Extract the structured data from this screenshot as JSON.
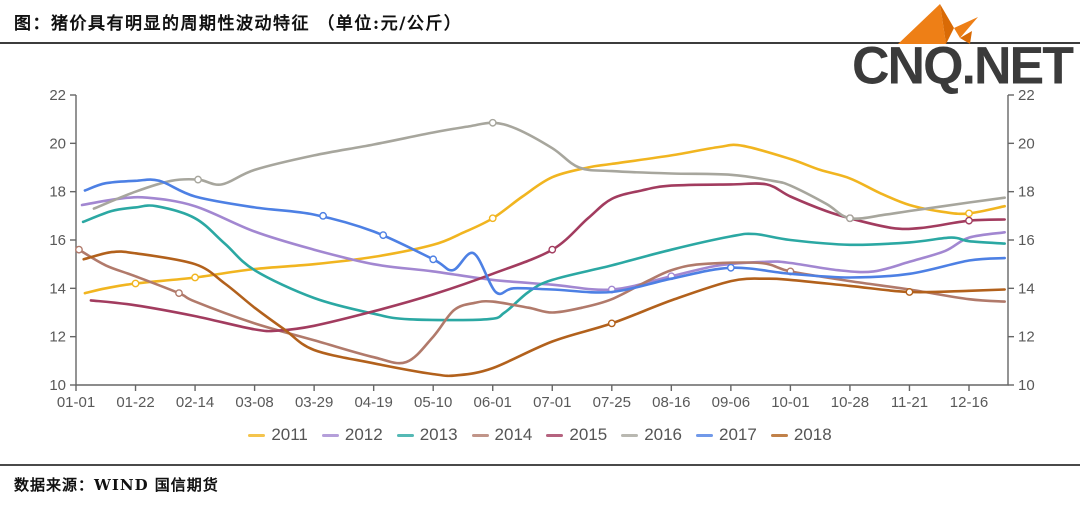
{
  "header": {
    "title": "图：猪价具有明显的周期性波动特征 （单位:元/公斤）"
  },
  "logo": {
    "text": "CNQ.NET",
    "icon": "origami-bird-icon",
    "icon_color": "#ee7f16",
    "icon_color_dark": "#d96a05",
    "text_color": "#3b3b3b"
  },
  "footer": {
    "source": "数据来源：WIND 国信期货"
  },
  "chart_data": {
    "type": "line",
    "title": "猪价周期性波动",
    "unit": "元/公斤",
    "x_tick_labels": [
      "01-01",
      "01-22",
      "02-14",
      "03-08",
      "03-29",
      "04-19",
      "05-10",
      "06-01",
      "07-01",
      "07-25",
      "08-16",
      "09-06",
      "10-01",
      "10-28",
      "11-21",
      "12-16"
    ],
    "y_axis": {
      "min": 10,
      "max": 22,
      "step": 2,
      "sides": "both"
    },
    "legend_position": "bottom",
    "grid": false,
    "styles": {
      "axis_color": "#666666",
      "tick_label_color": "#595959",
      "tick_font_size": 15,
      "line_width": 2.6
    },
    "series": [
      {
        "name": "2011",
        "color": "#f1b520",
        "points": [
          [
            0.15,
            13.8
          ],
          [
            0.5,
            14.0
          ],
          [
            1,
            14.2
          ],
          [
            2,
            14.45
          ],
          [
            3,
            14.8
          ],
          [
            4,
            15.0
          ],
          [
            5,
            15.3
          ],
          [
            6,
            15.8
          ],
          [
            6.5,
            16.3
          ],
          [
            7,
            16.9
          ],
          [
            7.5,
            17.8
          ],
          [
            8,
            18.6
          ],
          [
            8.6,
            19.0
          ],
          [
            9,
            19.15
          ],
          [
            10,
            19.5
          ],
          [
            10.8,
            19.85
          ],
          [
            11.2,
            19.9
          ],
          [
            12,
            19.35
          ],
          [
            12.5,
            18.9
          ],
          [
            13,
            18.55
          ],
          [
            13.5,
            17.95
          ],
          [
            14,
            17.45
          ],
          [
            14.6,
            17.15
          ],
          [
            15,
            17.1
          ],
          [
            15.6,
            17.4
          ]
        ],
        "markers": [
          [
            1,
            14.2
          ],
          [
            2,
            14.45
          ],
          [
            7,
            16.9
          ],
          [
            15,
            17.1
          ]
        ]
      },
      {
        "name": "2012",
        "color": "#a287d1",
        "points": [
          [
            0.1,
            17.45
          ],
          [
            0.7,
            17.7
          ],
          [
            1.2,
            17.75
          ],
          [
            2,
            17.4
          ],
          [
            3,
            16.35
          ],
          [
            4,
            15.6
          ],
          [
            5,
            15.0
          ],
          [
            6,
            14.7
          ],
          [
            7,
            14.35
          ],
          [
            8,
            14.15
          ],
          [
            9,
            13.95
          ],
          [
            10,
            14.5
          ],
          [
            10.8,
            14.95
          ],
          [
            11.6,
            15.1
          ],
          [
            12,
            15.05
          ],
          [
            12.8,
            14.75
          ],
          [
            13.4,
            14.7
          ],
          [
            14,
            15.1
          ],
          [
            14.6,
            15.55
          ],
          [
            15,
            16.1
          ],
          [
            15.6,
            16.32
          ]
        ],
        "markers": [
          [
            9,
            13.95
          ],
          [
            10,
            14.5
          ]
        ]
      },
      {
        "name": "2013",
        "color": "#2ba8a3",
        "points": [
          [
            0.12,
            16.75
          ],
          [
            0.6,
            17.2
          ],
          [
            1,
            17.35
          ],
          [
            1.35,
            17.4
          ],
          [
            2,
            16.9
          ],
          [
            2.5,
            15.85
          ],
          [
            3,
            14.75
          ],
          [
            4,
            13.6
          ],
          [
            5,
            12.95
          ],
          [
            5.6,
            12.72
          ],
          [
            6.9,
            12.72
          ],
          [
            7.2,
            13.0
          ],
          [
            7.6,
            13.85
          ],
          [
            8,
            14.35
          ],
          [
            9,
            14.95
          ],
          [
            10,
            15.6
          ],
          [
            11,
            16.15
          ],
          [
            11.4,
            16.25
          ],
          [
            12,
            16.0
          ],
          [
            13,
            15.8
          ],
          [
            14,
            15.9
          ],
          [
            14.7,
            16.1
          ],
          [
            15,
            15.95
          ],
          [
            15.6,
            15.85
          ]
        ],
        "markers": []
      },
      {
        "name": "2014",
        "color": "#b17a6b",
        "points": [
          [
            0.05,
            15.6
          ],
          [
            0.5,
            14.95
          ],
          [
            1,
            14.5
          ],
          [
            1.73,
            13.8
          ],
          [
            2,
            13.45
          ],
          [
            3,
            12.55
          ],
          [
            4,
            11.85
          ],
          [
            5,
            11.15
          ],
          [
            5.55,
            10.95
          ],
          [
            6,
            12.0
          ],
          [
            6.35,
            13.1
          ],
          [
            6.7,
            13.4
          ],
          [
            7,
            13.45
          ],
          [
            7.6,
            13.2
          ],
          [
            8,
            13.0
          ],
          [
            8.5,
            13.2
          ],
          [
            9,
            13.55
          ],
          [
            9.6,
            14.3
          ],
          [
            10,
            14.75
          ],
          [
            10.5,
            15.0
          ],
          [
            11.5,
            15.05
          ],
          [
            12,
            14.7
          ],
          [
            13,
            14.3
          ],
          [
            14,
            13.95
          ],
          [
            15,
            13.55
          ],
          [
            15.6,
            13.45
          ]
        ],
        "markers": [
          [
            0.05,
            15.6
          ],
          [
            1.73,
            13.8
          ],
          [
            12,
            14.7
          ]
        ]
      },
      {
        "name": "2015",
        "color": "#a23c5f",
        "points": [
          [
            0.25,
            13.5
          ],
          [
            1,
            13.3
          ],
          [
            2,
            12.85
          ],
          [
            3,
            12.3
          ],
          [
            3.4,
            12.25
          ],
          [
            4,
            12.45
          ],
          [
            5,
            13.05
          ],
          [
            6,
            13.75
          ],
          [
            7,
            14.6
          ],
          [
            8,
            15.6
          ],
          [
            8.6,
            16.9
          ],
          [
            9,
            17.7
          ],
          [
            9.5,
            18.05
          ],
          [
            10,
            18.25
          ],
          [
            11,
            18.3
          ],
          [
            11.6,
            18.3
          ],
          [
            12,
            17.8
          ],
          [
            12.6,
            17.2
          ],
          [
            13,
            16.9
          ],
          [
            13.7,
            16.5
          ],
          [
            14.2,
            16.5
          ],
          [
            15,
            16.8
          ],
          [
            15.6,
            16.85
          ]
        ],
        "markers": [
          [
            8,
            15.6
          ],
          [
            13,
            16.9
          ],
          [
            15,
            16.8
          ]
        ]
      },
      {
        "name": "2016",
        "color": "#a7a69d",
        "points": [
          [
            0.3,
            17.3
          ],
          [
            1,
            18.0
          ],
          [
            1.6,
            18.45
          ],
          [
            2.05,
            18.5
          ],
          [
            2.45,
            18.3
          ],
          [
            3,
            18.9
          ],
          [
            4,
            19.5
          ],
          [
            5,
            19.95
          ],
          [
            6,
            20.45
          ],
          [
            6.6,
            20.7
          ],
          [
            7,
            20.85
          ],
          [
            7.4,
            20.6
          ],
          [
            8,
            19.8
          ],
          [
            8.45,
            19.0
          ],
          [
            9,
            18.85
          ],
          [
            10,
            18.75
          ],
          [
            11,
            18.7
          ],
          [
            11.7,
            18.45
          ],
          [
            12,
            18.25
          ],
          [
            12.6,
            17.5
          ],
          [
            13,
            16.9
          ],
          [
            13.6,
            17.05
          ],
          [
            14,
            17.2
          ],
          [
            15,
            17.55
          ],
          [
            15.6,
            17.75
          ]
        ],
        "markers": [
          [
            2.05,
            18.5
          ],
          [
            7,
            20.85
          ],
          [
            13,
            16.9
          ]
        ]
      },
      {
        "name": "2017",
        "color": "#4d80e4",
        "points": [
          [
            0.15,
            18.05
          ],
          [
            0.5,
            18.35
          ],
          [
            1,
            18.45
          ],
          [
            1.4,
            18.45
          ],
          [
            2,
            17.8
          ],
          [
            3,
            17.35
          ],
          [
            4,
            17.05
          ],
          [
            5,
            16.35
          ],
          [
            6,
            15.2
          ],
          [
            6.33,
            14.75
          ],
          [
            6.68,
            15.45
          ],
          [
            7.05,
            13.85
          ],
          [
            7.35,
            14.0
          ],
          [
            8,
            13.95
          ],
          [
            9,
            13.85
          ],
          [
            10,
            14.4
          ],
          [
            11,
            14.85
          ],
          [
            12,
            14.6
          ],
          [
            13,
            14.45
          ],
          [
            14,
            14.6
          ],
          [
            15,
            15.15
          ],
          [
            15.6,
            15.25
          ]
        ],
        "markers": [
          [
            4.15,
            17.0
          ],
          [
            5.16,
            16.2
          ],
          [
            6,
            15.2
          ],
          [
            11,
            14.85
          ]
        ]
      },
      {
        "name": "2018",
        "color": "#b2611c",
        "points": [
          [
            0.13,
            15.2
          ],
          [
            0.6,
            15.5
          ],
          [
            1,
            15.45
          ],
          [
            2,
            15.0
          ],
          [
            2.5,
            14.2
          ],
          [
            3,
            13.2
          ],
          [
            3.5,
            12.3
          ],
          [
            4,
            11.45
          ],
          [
            5,
            10.9
          ],
          [
            6,
            10.45
          ],
          [
            6.4,
            10.4
          ],
          [
            7,
            10.7
          ],
          [
            8,
            11.8
          ],
          [
            9,
            12.55
          ],
          [
            10,
            13.5
          ],
          [
            11,
            14.3
          ],
          [
            11.6,
            14.4
          ],
          [
            12,
            14.35
          ],
          [
            13,
            14.1
          ],
          [
            14,
            13.85
          ],
          [
            15,
            13.9
          ],
          [
            15.6,
            13.95
          ]
        ],
        "markers": [
          [
            9,
            12.55
          ],
          [
            14,
            13.85
          ]
        ]
      }
    ]
  }
}
